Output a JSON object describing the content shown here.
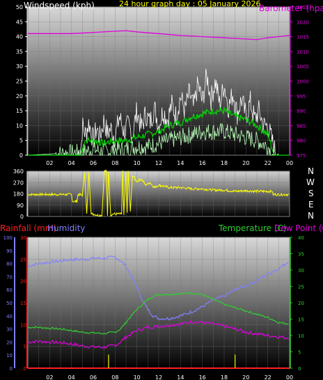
{
  "header": {
    "left_label": "Windspeed (kph)",
    "center_label": "24 hour graph day : 05 January 2026",
    "right_label": "Barometer (hpa"
  },
  "colors": {
    "windspeed": "#ffffff",
    "wind_avg": "#00dd00",
    "wind_low": "#bbffbb",
    "barometer": "#e000e0",
    "direction": "#ffff00",
    "rainfall": "#ff2020",
    "humidity": "#8080ff",
    "temperature": "#30d030",
    "dew_point": "#e000e0",
    "rain_bars": "#cccc00"
  },
  "compass": [
    "N",
    "W",
    "S",
    "E",
    "N"
  ],
  "bottom_header": {
    "rain_label": "Rainfall (mm)",
    "humidity_label": "Humidity",
    "temp_label": "Temperature (C)",
    "dew_label": "Dew Point (C"
  },
  "chart_data": [
    {
      "type": "line",
      "title": "24 hour graph day : 05 January 2026",
      "x_ticks": [
        "02",
        "04",
        "06",
        "08",
        "10",
        "12",
        "14",
        "16",
        "18",
        "20",
        "22",
        "00"
      ],
      "y_left_ticks": [
        0,
        5,
        10,
        15,
        20,
        25,
        30,
        35,
        40,
        45,
        50
      ],
      "y_right_ticks": [
        975,
        980,
        985,
        990,
        995,
        1000,
        1005,
        1010,
        1015,
        1020,
        1025
      ],
      "ylim_left": [
        0,
        50
      ],
      "ylim_right": [
        975,
        1025
      ],
      "xlim_hours": [
        0,
        24
      ],
      "series": [
        {
          "name": "Windspeed (kph)",
          "axis": "left",
          "x": [
            0,
            4.5,
            4.9,
            5.0,
            5.3,
            5.6,
            6.0,
            6.3,
            6.6,
            7.0,
            7.3,
            7.6,
            8.0,
            8.4,
            8.8,
            9.2,
            9.6,
            10.0,
            10.4,
            10.8,
            11.2,
            11.6,
            12.0,
            12.4,
            12.8,
            13.2,
            13.6,
            14.0,
            14.4,
            14.8,
            15.2,
            15.6,
            16.0,
            16.4,
            16.8,
            17.2,
            17.6,
            18.0,
            18.4,
            18.8,
            19.2,
            19.6,
            20.0,
            20.4,
            20.8,
            21.2,
            21.6,
            22.0,
            22.3,
            22.6,
            23.0,
            24.0
          ],
          "values": [
            0,
            0,
            3,
            10,
            7,
            11,
            5,
            9,
            6,
            12,
            7,
            9,
            6,
            13,
            8,
            10,
            7,
            15,
            9,
            14,
            11,
            16,
            10,
            15,
            12,
            17,
            13,
            20,
            15,
            21,
            16,
            24,
            18,
            27,
            19,
            25,
            17,
            24,
            16,
            21,
            14,
            19,
            13,
            18,
            12,
            15,
            10,
            10,
            6,
            2,
            0,
            0
          ]
        },
        {
          "name": "Wind average",
          "axis": "left",
          "x": [
            0,
            4.9,
            5.2,
            6.0,
            7.0,
            8.0,
            9.0,
            10.0,
            11.0,
            12.0,
            13.0,
            14.0,
            15.0,
            16.0,
            17.0,
            18.0,
            19.0,
            20.0,
            21.0,
            22.0,
            22.6,
            24.0
          ],
          "values": [
            0,
            0,
            5,
            5,
            4,
            5,
            5,
            6,
            7,
            8,
            10,
            11,
            13,
            14,
            15,
            15,
            13,
            12,
            10,
            7,
            0,
            0
          ]
        },
        {
          "name": "Wind low",
          "axis": "left",
          "x": [
            0,
            5.0,
            6.0,
            7.0,
            8.0,
            9.0,
            10.0,
            11.0,
            12.0,
            13.0,
            14.0,
            15.0,
            16.0,
            17.0,
            18.0,
            19.0,
            20.0,
            21.0,
            22.0,
            22.5,
            24.0
          ],
          "values": [
            0,
            1,
            2,
            1,
            2,
            2,
            3,
            3,
            4,
            5,
            6,
            7,
            8,
            8,
            8,
            7,
            6,
            5,
            3,
            0,
            0
          ]
        },
        {
          "name": "Barometer (hpa)",
          "axis": "right",
          "x": [
            0,
            2,
            4,
            6,
            8,
            9,
            10,
            12,
            14,
            16,
            18,
            20,
            21,
            22,
            23,
            24
          ],
          "values": [
            1016,
            1016,
            1016,
            1016.4,
            1016.8,
            1017,
            1016.6,
            1016,
            1015.4,
            1015,
            1014.6,
            1014.2,
            1014,
            1014.6,
            1015,
            1015.4
          ]
        }
      ]
    },
    {
      "type": "line",
      "title": "Wind direction",
      "y_ticks": [
        0,
        90,
        180,
        270,
        360
      ],
      "ylim": [
        0,
        360
      ],
      "compass_labels": [
        "N",
        "W",
        "S",
        "E",
        "N"
      ],
      "series": [
        {
          "name": "Wind direction",
          "x": [
            0,
            4.0,
            4.1,
            4.5,
            4.6,
            5.0,
            5.2,
            5.4,
            5.6,
            5.8,
            6.0,
            6.4,
            6.8,
            7.0,
            7.2,
            7.3,
            7.4,
            7.6,
            7.8,
            8.0,
            8.6,
            8.7,
            8.8,
            9.0,
            9.1,
            9.2,
            9.4,
            9.6,
            9.8,
            10.0,
            10.4,
            10.8,
            11.2,
            11.6,
            12.0,
            13.0,
            14.0,
            15.0,
            16.0,
            17.0,
            18.0,
            19.0,
            20.0,
            21.0,
            22.0,
            22.4,
            22.5,
            24.0
          ],
          "values": [
            175,
            175,
            120,
            120,
            175,
            170,
            355,
            20,
            360,
            20,
            20,
            10,
            10,
            360,
            360,
            10,
            360,
            10,
            20,
            20,
            20,
            360,
            10,
            360,
            20,
            360,
            40,
            330,
            300,
            280,
            300,
            250,
            270,
            230,
            250,
            230,
            230,
            220,
            220,
            210,
            210,
            200,
            205,
            200,
            200,
            200,
            175,
            175
          ]
        }
      ]
    },
    {
      "type": "line",
      "title": "",
      "x_ticks": [
        "02",
        "04",
        "06",
        "08",
        "10",
        "12",
        "14",
        "16",
        "18",
        "20",
        "22",
        "00"
      ],
      "y_rain_ticks": [
        0,
        5,
        10,
        15,
        20,
        25,
        30
      ],
      "y_humidity_ticks": [
        0,
        10,
        20,
        30,
        40,
        50,
        60,
        70,
        80,
        90,
        100
      ],
      "y_temp_ticks": [
        0,
        5,
        10,
        15,
        20,
        25,
        30,
        35,
        40
      ],
      "ylim_rain": [
        0,
        30
      ],
      "ylim_humidity": [
        0,
        100
      ],
      "ylim_temp": [
        0,
        40
      ],
      "series": [
        {
          "name": "Humidity",
          "axis": "humidity",
          "x": [
            0,
            1,
            2,
            3,
            4,
            5,
            6,
            7,
            8,
            8.5,
            9,
            9.5,
            10,
            10.5,
            11,
            11.5,
            12,
            13,
            14,
            15,
            16,
            17,
            18,
            19,
            20,
            21,
            22,
            23,
            24
          ],
          "values": [
            78,
            80,
            81,
            82,
            83,
            83,
            84,
            84,
            85,
            82,
            78,
            70,
            62,
            52,
            45,
            40,
            38,
            38,
            40,
            43,
            47,
            52,
            55,
            60,
            63,
            67,
            72,
            76,
            82
          ]
        },
        {
          "name": "Temperature (C)",
          "axis": "temp",
          "x": [
            0,
            1,
            2,
            3,
            4,
            5,
            6,
            7,
            8,
            8.5,
            9,
            9.5,
            10,
            10.5,
            11,
            11.5,
            12,
            13,
            14,
            15,
            16,
            17,
            18,
            19,
            20,
            21,
            22,
            23,
            24
          ],
          "values": [
            12.5,
            12.5,
            12.2,
            12,
            11.5,
            11,
            10.8,
            10.6,
            11,
            12,
            14,
            16,
            18,
            19.5,
            21,
            22,
            22.5,
            22.6,
            22.8,
            23,
            22.5,
            21,
            19.5,
            18.5,
            17.5,
            16.5,
            15.5,
            14,
            13.5
          ]
        },
        {
          "name": "Dew Point (C",
          "axis": "temp",
          "x": [
            0,
            1,
            2,
            3,
            4,
            5,
            6,
            7,
            8,
            8.5,
            9,
            9.5,
            10,
            10.5,
            11,
            11.5,
            12,
            13,
            14,
            15,
            16,
            17,
            18,
            19,
            20,
            21,
            22,
            23,
            24
          ],
          "values": [
            8,
            8.2,
            8,
            7.8,
            7.4,
            6.8,
            6.5,
            6.4,
            7,
            8,
            9.5,
            10.5,
            11.5,
            12,
            12.5,
            12.6,
            12.8,
            13.2,
            13.5,
            14.2,
            14,
            13.5,
            12.8,
            12,
            11,
            10.5,
            10,
            9.6,
            9.2
          ]
        },
        {
          "name": "Rainfall (mm)",
          "axis": "rain",
          "x": [
            0,
            24
          ],
          "values": [
            0,
            0
          ]
        },
        {
          "name": "Rain bars",
          "axis": "rain",
          "x": [
            7.4,
            19.0
          ],
          "values": [
            1.2,
            1.2
          ]
        }
      ]
    }
  ]
}
